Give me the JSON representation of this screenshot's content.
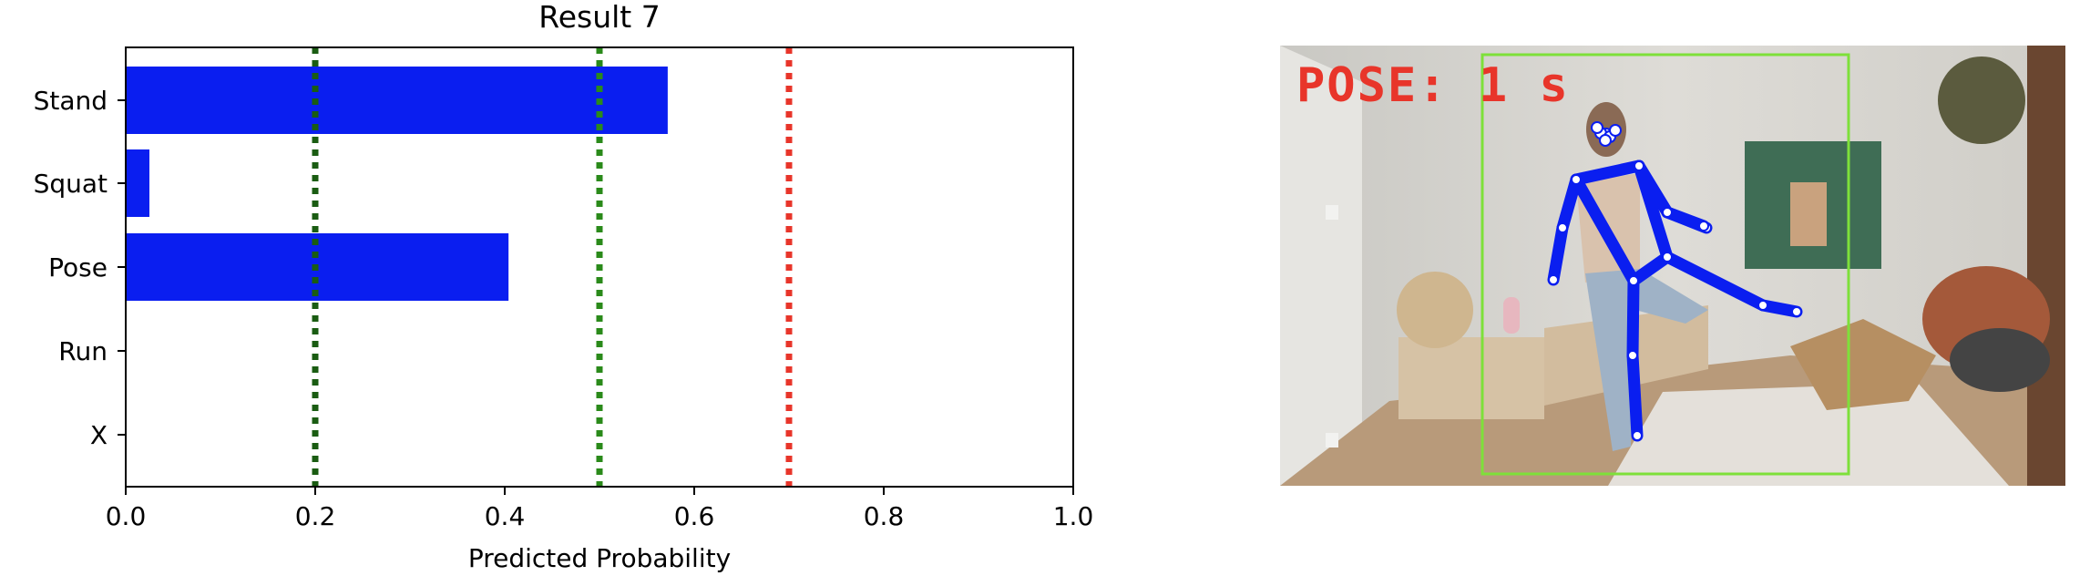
{
  "chart_data": {
    "type": "bar",
    "orientation": "horizontal",
    "title": "Result 7",
    "xlabel": "Predicted Probability",
    "ylabel": "",
    "categories": [
      "Stand",
      "Squat",
      "Pose",
      "Run",
      "X"
    ],
    "values": [
      0.572,
      0.025,
      0.404,
      0.0,
      0.0
    ],
    "xlim": [
      0.0,
      1.0
    ],
    "xticks": [
      "0.0",
      "0.2",
      "0.4",
      "0.6",
      "0.8",
      "1.0"
    ],
    "bar_color": "#0a1ef0",
    "grid": false,
    "reference_lines": [
      {
        "x": 0.2,
        "color": "#1a5c12",
        "style": "dotted"
      },
      {
        "x": 0.5,
        "color": "#2a8a1a",
        "style": "dotted"
      },
      {
        "x": 0.7,
        "color": "#e8352a",
        "style": "dotted"
      }
    ]
  },
  "image_panel": {
    "overlay_text": "POSE: 1 s",
    "overlay_color": "#e8352a",
    "box_color": "#7ee03a",
    "skeleton_color": "#0a1ef0"
  }
}
